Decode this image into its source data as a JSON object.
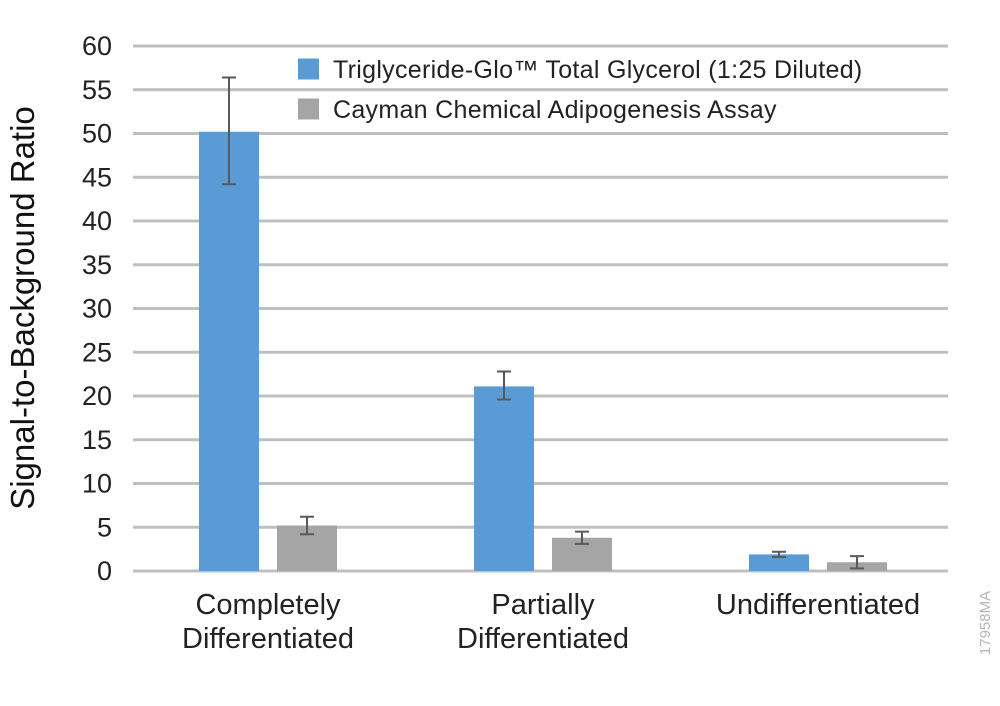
{
  "chart_data": {
    "type": "bar",
    "title": "",
    "xlabel": "",
    "ylabel": "Signal-to-Background Ratio",
    "ylim": [
      0,
      60
    ],
    "yticks": [
      0,
      5,
      10,
      15,
      20,
      25,
      30,
      35,
      40,
      45,
      50,
      55,
      60
    ],
    "grid": true,
    "legend_position": "top-right",
    "categories": [
      [
        "Completely",
        "Differentiated"
      ],
      [
        "Partially",
        "Differentiated"
      ],
      [
        "Undifferentiated"
      ]
    ],
    "series": [
      {
        "name": "Triglyceride-Glo™ Total Glycerol (1:25 Diluted)",
        "color": "#5b9bd5",
        "values": [
          50.2,
          21.1,
          1.9
        ],
        "error_low": [
          44.2,
          19.6,
          1.6
        ],
        "error_high": [
          56.4,
          22.8,
          2.2
        ]
      },
      {
        "name": "Cayman Chemical Adipogenesis Assay",
        "color": "#a5a5a5",
        "values": [
          5.2,
          3.8,
          1.0
        ],
        "error_low": [
          4.2,
          3.1,
          0.3
        ],
        "error_high": [
          6.2,
          4.5,
          1.7
        ]
      }
    ],
    "gridline_color": "#bfbfbf",
    "errorbar_color": "#595959"
  },
  "figure_id": "17958MA"
}
